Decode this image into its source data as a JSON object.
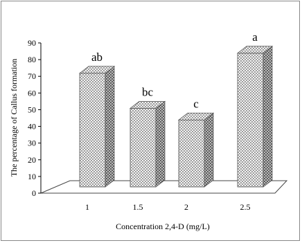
{
  "chart_data": {
    "type": "bar",
    "style": "3d-column",
    "categories": [
      "1",
      "1.5",
      "2",
      "2.5"
    ],
    "values": [
      76,
      55,
      48,
      88
    ],
    "significance_labels": [
      "ab",
      "bc",
      "c",
      "a"
    ],
    "title": "",
    "xlabel": "Concentration 2,4-D (mg/L)",
    "ylabel": "The percentage of Callus formation",
    "ylim": [
      0,
      90
    ],
    "yticks": [
      0,
      10,
      20,
      30,
      40,
      50,
      60,
      70,
      80,
      90
    ],
    "grid": false,
    "legend": "none",
    "bar_pattern": "dotted-crosshatch",
    "colors": {
      "bar_fill": "#ffffff",
      "bar_pattern": "#555555",
      "axis": "#000000",
      "floor": "#444444"
    }
  }
}
